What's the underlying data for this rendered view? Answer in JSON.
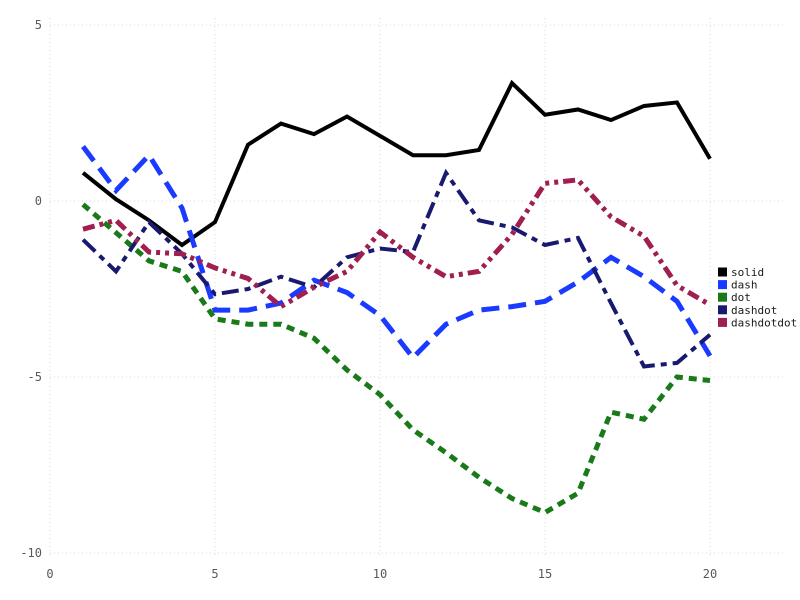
{
  "chart_data": {
    "type": "line",
    "title": "",
    "xlabel": "",
    "ylabel": "",
    "xlim": [
      0,
      20
    ],
    "ylim": [
      -10,
      5
    ],
    "xticks": [
      0,
      5,
      10,
      15,
      20
    ],
    "yticks": [
      5,
      0,
      -5,
      -10
    ],
    "grid": true,
    "grid_color": "#d7d7d7",
    "tick_label_color": "#595959",
    "legend_position": "right",
    "legend_text_color": "#1a1a1a",
    "background_color": "#ffffff",
    "x": [
      1,
      2,
      3,
      4,
      5,
      6,
      7,
      8,
      9,
      10,
      11,
      12,
      13,
      14,
      15,
      16,
      17,
      18,
      19,
      20
    ],
    "series": [
      {
        "name": "solid",
        "style": "solid",
        "color": "#000000",
        "values": [
          0.8,
          0.05,
          -0.55,
          -1.25,
          -0.6,
          1.6,
          2.2,
          1.9,
          2.4,
          1.85,
          1.3,
          1.3,
          1.45,
          3.35,
          2.45,
          2.6,
          2.3,
          2.7,
          2.8,
          1.2
        ]
      },
      {
        "name": "dash",
        "style": "dash",
        "color": "#1a3aff",
        "values": [
          1.55,
          0.3,
          1.3,
          -0.2,
          -3.1,
          -3.1,
          -2.9,
          -2.25,
          -2.6,
          -3.25,
          -4.45,
          -3.5,
          -3.1,
          -3.0,
          -2.85,
          -2.3,
          -1.6,
          -2.15,
          -2.85,
          -4.4
        ]
      },
      {
        "name": "dot",
        "style": "dot",
        "color": "#1a7a1a",
        "values": [
          -0.1,
          -0.9,
          -1.7,
          -2.0,
          -3.35,
          -3.5,
          -3.5,
          -3.9,
          -4.8,
          -5.5,
          -6.5,
          -7.15,
          -7.85,
          -8.45,
          -8.85,
          -8.3,
          -6.0,
          -6.2,
          -5.0,
          -5.1
        ]
      },
      {
        "name": "dashdot",
        "style": "dashdot",
        "color": "#191970",
        "values": [
          -1.1,
          -2.0,
          -0.6,
          -1.5,
          -2.65,
          -2.5,
          -2.15,
          -2.45,
          -1.6,
          -1.35,
          -1.45,
          0.8,
          -0.55,
          -0.75,
          -1.25,
          -1.05,
          -2.9,
          -4.7,
          -4.6,
          -3.8
        ]
      },
      {
        "name": "dashdotdot",
        "style": "dashdotdot",
        "color": "#a01e50",
        "values": [
          -0.8,
          -0.55,
          -1.45,
          -1.5,
          -1.9,
          -2.2,
          -3.0,
          -2.45,
          -2.0,
          -0.88,
          -1.6,
          -2.15,
          -2.0,
          -0.95,
          0.5,
          0.6,
          -0.45,
          -1.0,
          -2.4,
          -2.95
        ]
      }
    ]
  }
}
